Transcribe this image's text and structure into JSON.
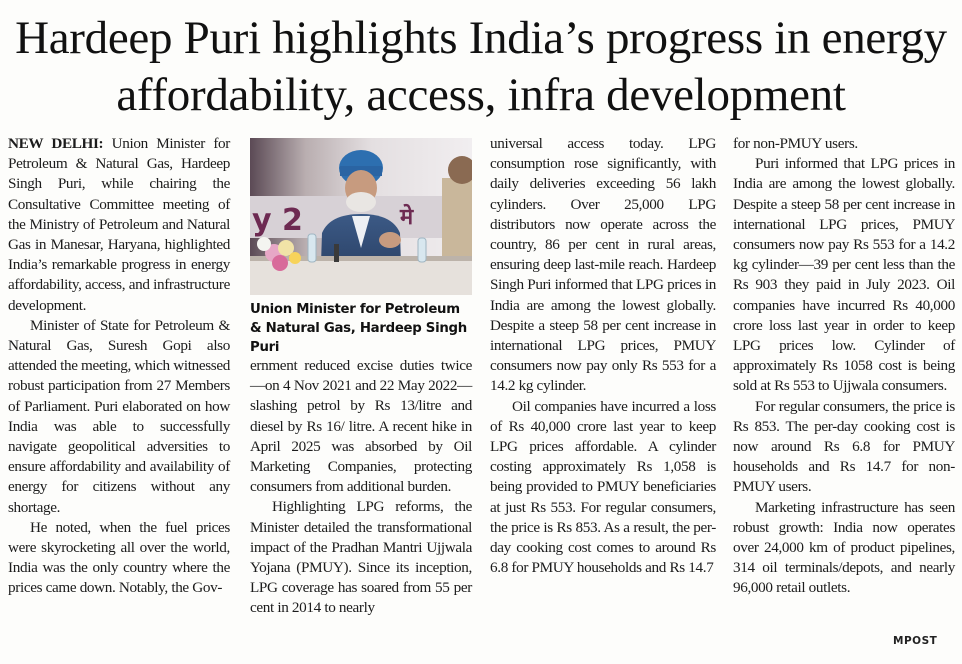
{
  "headline": "Hardeep Puri highlights India’s progress in energy affordability, access, infra development",
  "photo": {
    "caption": "Union Minister for Petroleum & Natural Gas, Hardeep Singh Puri",
    "icon": "photo-of-minister"
  },
  "article": {
    "dateline": "NEW DELHI:",
    "col1": [
      "Union Minister for Petroleum & Natural Gas, Hardeep Singh Puri, while chairing the Consultative Committee meeting of the Ministry of Petroleum and Natural Gas in Manesar, Haryana, highlighted India’s remarkable progress in energy affordability, access, and infrastructure development.",
      "Minister of State for Petroleum & Natural Gas, Suresh Gopi also attended the meeting, which witnessed robust participation from 27 Members of Parliament. Puri elaborated on how India was able to successfully navigate geopolitical adversities to ensure affordability and availability of energy for citizens without any shortage.",
      "He noted, when the fuel prices were skyrocketing all over the world, India was the only country where the prices came down. Notably, the Gov-"
    ],
    "col2": [
      "ernment reduced excise duties twice—on 4 Nov 2021 and 22 May 2022—slashing petrol by Rs 13/litre and diesel by Rs 16/ litre. A recent hike in April 2025 was absorbed by Oil Marketing Companies, protecting consumers from additional burden.",
      "Highlighting LPG reforms, the Minister detailed the transformational impact of the Pradhan Mantri Ujjwala Yojana (PMUY). Since its inception, LPG coverage has soared from 55 per cent in 2014 to nearly"
    ],
    "col3": [
      "universal access today. LPG consumption rose significantly, with daily deliveries exceeding 56 lakh cylinders. Over 25,000 LPG distributors now operate across the country, 86 per cent in rural areas, ensuring deep last-mile reach. Hardeep Singh Puri informed that LPG prices in India are among the lowest globally. Despite a steep 58 per cent increase in international LPG prices, PMUY consumers now pay only Rs 553 for a 14.2 kg cylinder.",
      "Oil companies have incurred a loss of Rs 40,000 crore last year to keep LPG prices affordable. A cylinder costing approximately Rs 1,058 is being provided to PMUY beneficiaries at just Rs 553. For regular consumers, the price is Rs 853. As a result, the per-day cooking cost comes to around Rs 6.8 for PMUY households and Rs 14.7"
    ],
    "col4": [
      "for non-PMUY users.",
      "Puri informed that LPG prices in India are among the lowest globally. Despite a steep 58 per cent increase in international LPG prices, PMUY consumers now pay Rs 553 for a 14.2 kg cylinder—39 per cent less than the Rs 903 they paid in July 2023. Oil companies have incurred Rs 40,000 crore loss last year in order to keep LPG prices low. Cylinder of approximately Rs 1058 cost is being sold at Rs 553 to Ujjwala consumers.",
      "For regular consumers, the price is Rs 853. The per-day cooking cost is now around Rs 6.8 for PMUY households and Rs 14.7 for non-PMUY users.",
      "Marketing infrastructure has seen robust growth: India now operates over 24,000 km of product pipelines, 314 oil terminals/depots, and nearly 96,000 retail outlets."
    ],
    "credit": "MPOST"
  }
}
